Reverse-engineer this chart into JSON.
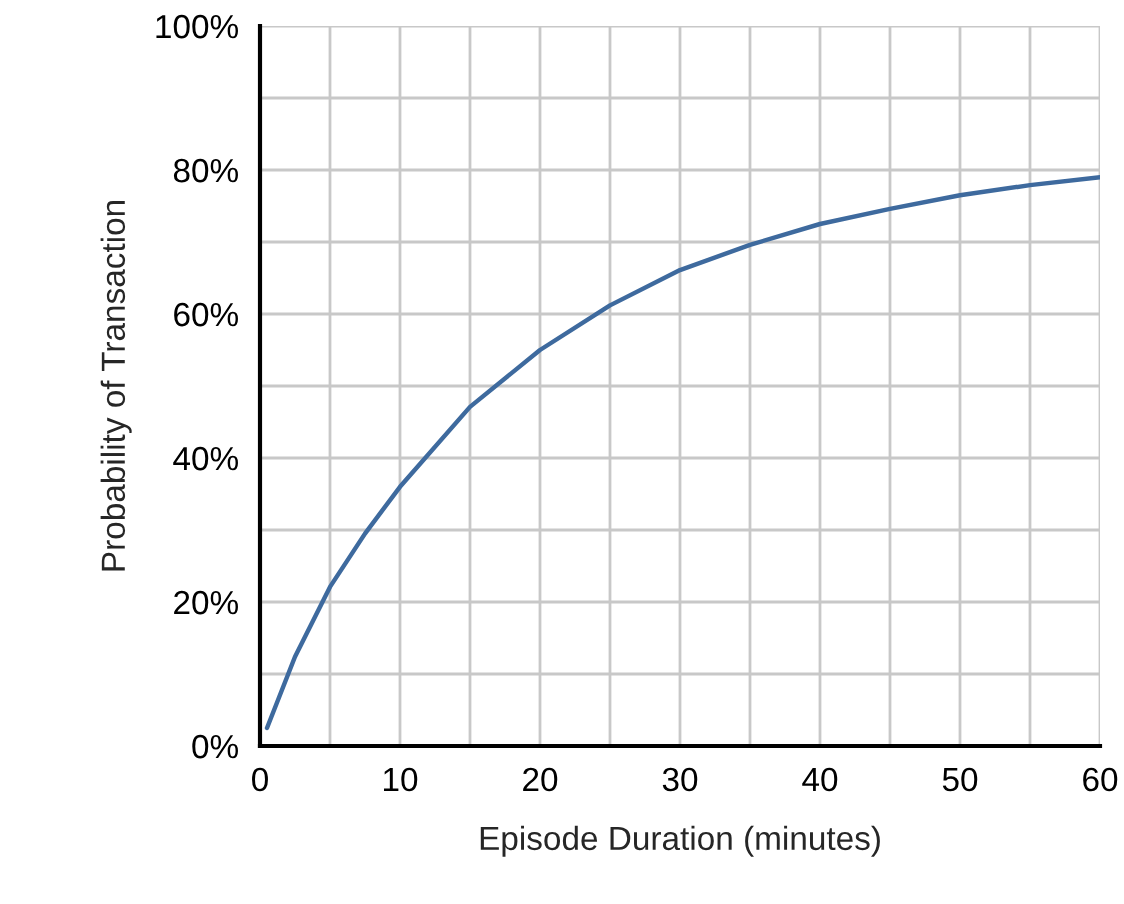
{
  "chart_data": {
    "type": "line",
    "xlabel": "Episode Duration (minutes)",
    "ylabel": "Probability of Transaction",
    "x": [
      0.5,
      2.5,
      5,
      7.5,
      10,
      15,
      20,
      25,
      30,
      35,
      40,
      45,
      50,
      55,
      60
    ],
    "series": [
      {
        "color": "#3e6a9e",
        "values": [
          2.5,
          12.4,
          22.1,
          29.5,
          36,
          47.1,
          55,
          61.2,
          66.1,
          69.6,
          72.5,
          74.6,
          76.5,
          77.9,
          79
        ]
      }
    ],
    "xlim": [
      0,
      60
    ],
    "ylim": [
      0,
      100
    ],
    "xticks": [
      0,
      {
        "value": 5,
        "label": null
      },
      10,
      {
        "value": 15,
        "label": null
      },
      20,
      {
        "value": 25,
        "label": null
      },
      30,
      {
        "value": 35,
        "label": null
      },
      40,
      {
        "value": 45,
        "label": null
      },
      50,
      {
        "value": 55,
        "label": null
      },
      60
    ],
    "yticks": [
      {
        "value": 0,
        "label": "0%"
      },
      {
        "value": 10,
        "label": null
      },
      {
        "value": 20,
        "label": "20%"
      },
      {
        "value": 30,
        "label": null
      },
      {
        "value": 40,
        "label": "40%"
      },
      {
        "value": 50,
        "label": null
      },
      {
        "value": 60,
        "label": "60%"
      },
      {
        "value": 70,
        "label": null
      },
      {
        "value": 80,
        "label": "80%"
      },
      {
        "value": 90,
        "label": null
      },
      {
        "value": 100,
        "label": "100%"
      }
    ],
    "grid": true,
    "marker": "none",
    "line_style": "solid"
  }
}
